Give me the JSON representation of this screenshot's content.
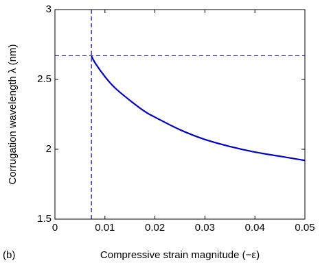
{
  "panel_label": "(b)",
  "colors": {
    "curve": "#0000cc",
    "reference_lines": "#0000cc",
    "axes": "#000000"
  },
  "chart_data": {
    "type": "line",
    "title": "",
    "xlabel": "Compressive strain magnitude (−ε)",
    "ylabel": "Corrugation wavelength λ (nm)",
    "xlim": [
      0,
      0.05
    ],
    "ylim": [
      1.5,
      3
    ],
    "xticks": [
      0,
      0.01,
      0.02,
      0.03,
      0.04,
      0.05
    ],
    "xtick_labels": [
      "0",
      "0.01",
      "0.02",
      "0.03",
      "0.04",
      "0.05"
    ],
    "yticks": [
      1.5,
      2,
      2.5,
      3
    ],
    "ytick_labels": [
      "1.5",
      "2",
      "2.5",
      "3"
    ],
    "grid": false,
    "series": [
      {
        "x": [
          0.0073,
          0.008,
          0.01,
          0.012,
          0.015,
          0.018,
          0.02,
          0.025,
          0.03,
          0.035,
          0.04,
          0.045,
          0.05
        ],
        "y": [
          2.67,
          2.62,
          2.52,
          2.44,
          2.35,
          2.27,
          2.23,
          2.14,
          2.07,
          2.02,
          1.98,
          1.95,
          1.92
        ]
      }
    ],
    "reference_lines": [
      {
        "orientation": "vertical",
        "value": 0.0073,
        "style": "dashed"
      },
      {
        "orientation": "horizontal",
        "value": 2.67,
        "style": "dashed"
      }
    ]
  }
}
